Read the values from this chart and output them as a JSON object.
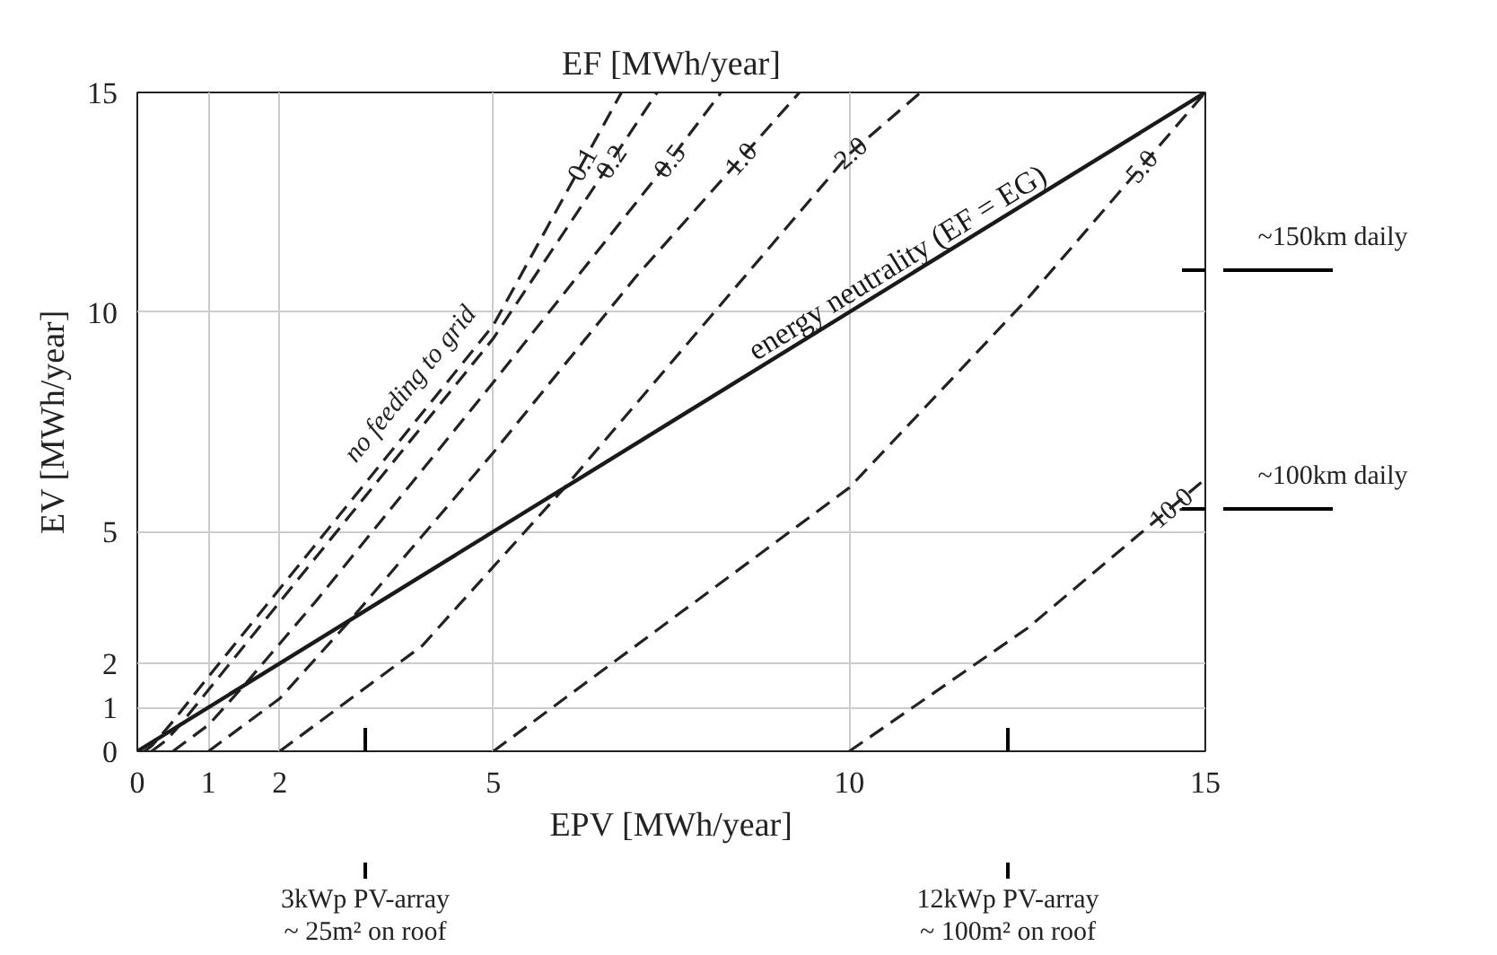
{
  "chart_data": {
    "type": "line",
    "title": "EF [MWh/year]",
    "xlabel": "EPV [MWh/year]",
    "ylabel": "EV [MWh/year]",
    "xlim": [
      0,
      15
    ],
    "ylim": [
      0,
      15
    ],
    "xticks": [
      0,
      1,
      2,
      5,
      10,
      15
    ],
    "yticks": [
      0,
      1,
      2,
      5,
      10,
      15
    ],
    "grid": true,
    "marker": "none",
    "series": [
      {
        "name": "0.1",
        "color": "#222222",
        "line_style": "dashed",
        "x": [
          0.1,
          0.2,
          0.3,
          0.5,
          1,
          2.5,
          5,
          6.8
        ],
        "values": [
          0,
          0.12,
          0.3,
          0.68,
          1.7,
          4.7,
          9.7,
          15
        ]
      },
      {
        "name": "0.2",
        "color": "#222222",
        "line_style": "dashed",
        "x": [
          0.2,
          0.4,
          0.6,
          1,
          2,
          3,
          5,
          7.3
        ],
        "values": [
          0,
          0.24,
          0.6,
          1.4,
          3.4,
          5.4,
          9.4,
          15
        ]
      },
      {
        "name": "0.5",
        "color": "#222222",
        "line_style": "dashed",
        "x": [
          0.5,
          1,
          1.5,
          2.5,
          3.5,
          5,
          7.5,
          8.2
        ],
        "values": [
          0,
          0.6,
          1.5,
          3.4,
          5.4,
          8.4,
          13.5,
          15
        ]
      },
      {
        "name": "1.0",
        "color": "#222222",
        "line_style": "dashed",
        "x": [
          1,
          2,
          3,
          4,
          5,
          7,
          9.3
        ],
        "values": [
          0,
          1.2,
          3,
          4.9,
          6.8,
          10.8,
          15
        ]
      },
      {
        "name": "2.0",
        "color": "#222222",
        "line_style": "dashed",
        "x": [
          2,
          3,
          4,
          6,
          8,
          10,
          11
        ],
        "values": [
          0,
          1.2,
          2.4,
          6,
          9.8,
          13.6,
          15
        ]
      },
      {
        "name": "5.0",
        "color": "#222222",
        "line_style": "dashed",
        "x": [
          5,
          7.5,
          10,
          12.5,
          15
        ],
        "values": [
          0,
          3.0,
          6.0,
          10.3,
          15
        ]
      },
      {
        "name": "10.0",
        "color": "#222222",
        "line_style": "dashed",
        "x": [
          10,
          12.5,
          15
        ],
        "values": [
          0,
          2.8,
          6.2
        ]
      },
      {
        "name": "energy neutrality (EF = EG)",
        "color": "#1a1a1a",
        "line_style": "solid",
        "x": [
          0,
          15
        ],
        "values": [
          0,
          15
        ]
      }
    ],
    "annotations": [
      "no feeding to grid",
      "~150km daily",
      "~100km daily",
      "3kWp PV-array\n~ 25m² on roof",
      "12kWp PV-array\n~ 100m² on roof"
    ]
  }
}
